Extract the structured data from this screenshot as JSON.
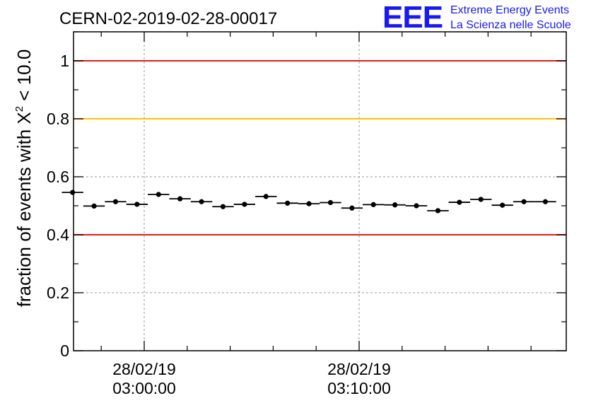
{
  "header": {
    "run_title": "CERN-02-2019-02-28-00017",
    "logo_text": "EEE",
    "logo_line1": "Extreme Energy Events",
    "logo_line2": "La Scienza nelle Scuole"
  },
  "chart_data": {
    "type": "scatter",
    "title": "CERN-02-2019-02-28-00017",
    "ylabel_prefix": "fraction of events with ",
    "ylabel_symbol": "X",
    "ylabel_power": "2",
    "ylabel_suffix": " < 10.0",
    "ylim": [
      0,
      1.1
    ],
    "y_ticks": [
      "0",
      "0.2",
      "0.4",
      "0.6",
      "0.8",
      "1"
    ],
    "x_tick_labels": [
      {
        "date": "28/02/19",
        "time": "03:00:00"
      },
      {
        "date": "28/02/19",
        "time": "03:10:00"
      }
    ],
    "grid": true,
    "reference_lines": [
      {
        "y": 1.0,
        "color": "#e31a1c"
      },
      {
        "y": 0.8,
        "color": "#ffc300"
      },
      {
        "y": 0.4,
        "color": "#e31a1c"
      }
    ],
    "points": [
      {
        "t": "02:56:40",
        "y": 0.546
      },
      {
        "t": "02:57:40",
        "y": 0.499
      },
      {
        "t": "02:58:40",
        "y": 0.514
      },
      {
        "t": "02:59:40",
        "y": 0.505
      },
      {
        "t": "03:00:40",
        "y": 0.539
      },
      {
        "t": "03:01:40",
        "y": 0.524
      },
      {
        "t": "03:02:40",
        "y": 0.514
      },
      {
        "t": "03:03:40",
        "y": 0.497
      },
      {
        "t": "03:04:40",
        "y": 0.505
      },
      {
        "t": "03:05:40",
        "y": 0.532
      },
      {
        "t": "03:06:40",
        "y": 0.509
      },
      {
        "t": "03:07:40",
        "y": 0.507
      },
      {
        "t": "03:08:40",
        "y": 0.511
      },
      {
        "t": "03:09:40",
        "y": 0.492
      },
      {
        "t": "03:10:40",
        "y": 0.504
      },
      {
        "t": "03:11:40",
        "y": 0.503
      },
      {
        "t": "03:12:40",
        "y": 0.5
      },
      {
        "t": "03:13:40",
        "y": 0.483
      },
      {
        "t": "03:14:40",
        "y": 0.512
      },
      {
        "t": "03:15:40",
        "y": 0.522
      },
      {
        "t": "03:16:40",
        "y": 0.502
      },
      {
        "t": "03:17:40",
        "y": 0.514
      },
      {
        "t": "03:18:40",
        "y": 0.514
      }
    ],
    "colors": {
      "logo": "#1a1aee",
      "markers": "#000000",
      "grid": "#9a9a9a"
    }
  }
}
